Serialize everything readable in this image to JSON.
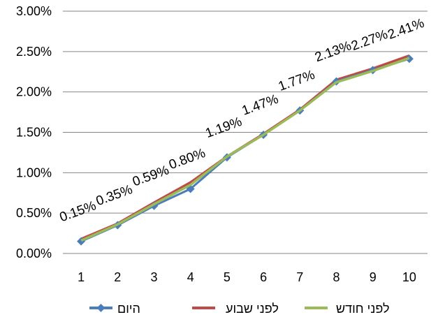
{
  "chart_data": {
    "type": "line",
    "categories": [
      "1",
      "2",
      "3",
      "4",
      "5",
      "6",
      "7",
      "8",
      "9",
      "10"
    ],
    "ylim": [
      0,
      3.0
    ],
    "ytick_values": [
      0,
      0.5,
      1.0,
      1.5,
      2.0,
      2.5,
      3.0
    ],
    "ytick_labels": [
      "0.00%",
      "0.50%",
      "1.00%",
      "1.50%",
      "2.00%",
      "2.50%",
      "3.00%"
    ],
    "grid": true,
    "legend_position": "bottom",
    "series": [
      {
        "name": "היום",
        "color": "#4a7ebb",
        "marker": "diamond",
        "values": [
          0.15,
          0.35,
          0.59,
          0.8,
          1.19,
          1.47,
          1.77,
          2.13,
          2.27,
          2.41
        ],
        "data_labels": [
          "0.15%",
          "0.35%",
          "0.59%",
          "0.80%",
          "1.19%",
          "1.47%",
          "1.77%",
          "2.13%",
          "2.27%",
          "2.41%"
        ]
      },
      {
        "name": "לפני שבוע",
        "color": "#be4b48",
        "marker": "none",
        "values": [
          0.18,
          0.37,
          0.63,
          0.88,
          1.2,
          1.48,
          1.78,
          2.15,
          2.29,
          2.45
        ]
      },
      {
        "name": "לפני חודש",
        "color": "#9bbb59",
        "marker": "none",
        "values": [
          0.16,
          0.36,
          0.61,
          0.85,
          1.2,
          1.47,
          1.77,
          2.12,
          2.26,
          2.42
        ]
      }
    ]
  }
}
